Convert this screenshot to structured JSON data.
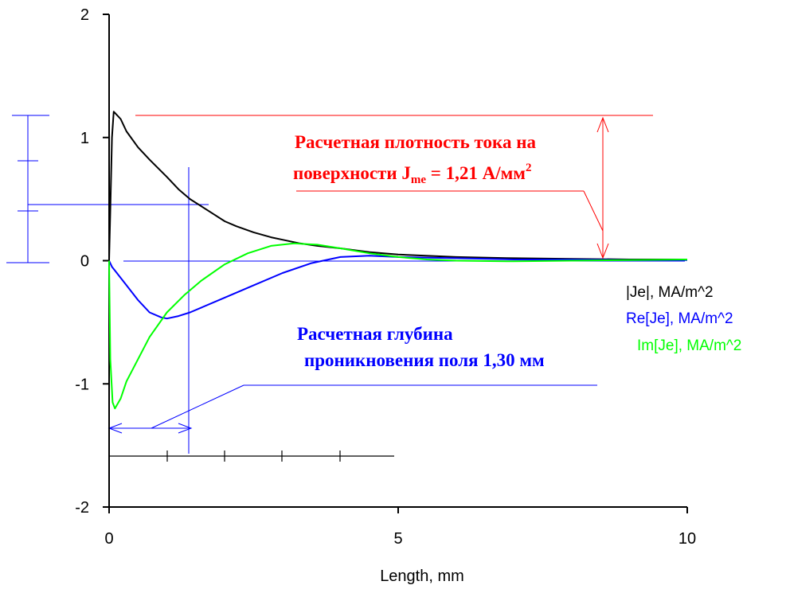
{
  "chart_data": {
    "type": "line",
    "title": "",
    "xlabel": "Length, mm",
    "ylabel": "",
    "xlim": [
      0,
      10
    ],
    "ylim": [
      -2,
      2
    ],
    "x_ticks": [
      "0",
      "5",
      "10"
    ],
    "y_ticks": [
      "2",
      "1",
      "0",
      "-1",
      "-2"
    ],
    "grid": false,
    "legend_position": "right",
    "series": [
      {
        "name": "|Je|, MA/m^2",
        "color": "#000000",
        "x": [
          0,
          0.02,
          0.05,
          0.08,
          0.1,
          0.2,
          0.3,
          0.5,
          0.7,
          1.0,
          1.2,
          1.4,
          1.6,
          1.8,
          2.0,
          2.2,
          2.5,
          2.8,
          3.0,
          3.3,
          3.6,
          4.0,
          4.5,
          5.0,
          6.0,
          7.0,
          8.0,
          9.0,
          10.0
        ],
        "y": [
          0,
          0.4,
          1.0,
          1.21,
          1.2,
          1.15,
          1.05,
          0.92,
          0.82,
          0.68,
          0.58,
          0.5,
          0.44,
          0.38,
          0.32,
          0.28,
          0.23,
          0.19,
          0.17,
          0.14,
          0.12,
          0.1,
          0.07,
          0.05,
          0.03,
          0.02,
          0.015,
          0.01,
          0.01
        ]
      },
      {
        "name": "Re[Je], MA/m^2",
        "color": "#0000ff",
        "x": [
          0,
          0.05,
          0.1,
          0.3,
          0.5,
          0.7,
          0.9,
          1.0,
          1.2,
          1.4,
          1.6,
          2.0,
          2.5,
          3.0,
          3.5,
          4.0,
          4.5,
          5.0,
          6.0,
          7.0,
          8.0,
          9.0,
          10.0
        ],
        "y": [
          0,
          -0.05,
          -0.08,
          -0.2,
          -0.32,
          -0.42,
          -0.46,
          -0.47,
          -0.45,
          -0.42,
          -0.38,
          -0.3,
          -0.2,
          -0.1,
          -0.02,
          0.03,
          0.04,
          0.03,
          0.02,
          0.01,
          0.01,
          0.005,
          0.005
        ]
      },
      {
        "name": "Im[Je], MA/m^2",
        "color": "#00ff00",
        "x": [
          0,
          0.02,
          0.06,
          0.1,
          0.2,
          0.3,
          0.5,
          0.7,
          1.0,
          1.3,
          1.6,
          2.0,
          2.4,
          2.8,
          3.2,
          3.6,
          4.0,
          4.5,
          5.0,
          5.5,
          6.0,
          7.0,
          8.0,
          9.0,
          10.0
        ],
        "y": [
          0,
          -0.8,
          -1.15,
          -1.2,
          -1.12,
          -0.98,
          -0.8,
          -0.62,
          -0.42,
          -0.28,
          -0.16,
          -0.03,
          0.06,
          0.12,
          0.14,
          0.13,
          0.1,
          0.06,
          0.03,
          0.01,
          0.0,
          -0.005,
          0.0,
          0.005,
          0.01
        ]
      }
    ],
    "annotations": {
      "surface_density_line1": "Расчетная плотность тока на",
      "surface_density_line2_prefix": "поверхности J",
      "surface_density_sub": "me",
      "surface_density_line2_mid": " = 1,21 А/мм",
      "surface_density_sup": "2",
      "depth_line1": "Расчетная глубина",
      "depth_line2": "проникновения поля 1,30 мм"
    }
  }
}
